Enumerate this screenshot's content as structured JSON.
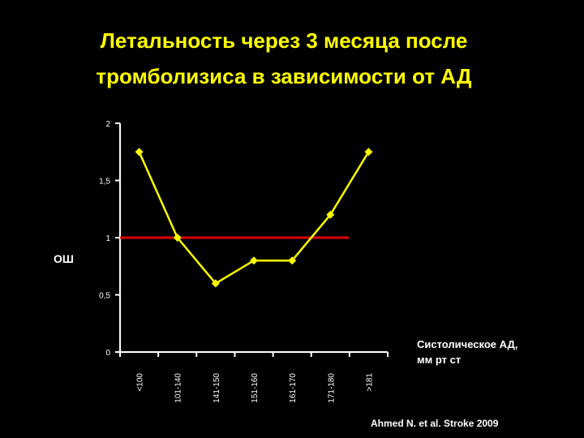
{
  "slide": {
    "title_line1": "Летальность через 3 месяца после",
    "title_line2": "тромболизиса в зависимости от АД",
    "source": "Ahmed N. et al. Stroke 2009"
  },
  "chart_data": {
    "type": "line",
    "title": "Летальность через 3 месяца после тромболизиса в зависимости от АД",
    "xlabel_line1": "Систолическое АД,",
    "xlabel_line2": "мм рт ст",
    "ylabel": "ОШ",
    "categories": [
      "<100",
      "101-140",
      "141-150",
      "151-160",
      "161-170",
      "171-180",
      ">181"
    ],
    "series": [
      {
        "values": [
          1.75,
          1.0,
          0.6,
          0.8,
          0.8,
          1.2,
          1.75
        ],
        "color": "#ffff00",
        "marker": "diamond"
      }
    ],
    "reference_line": {
      "y": 1,
      "color": "#dd0000"
    },
    "ylim": [
      0,
      2
    ],
    "yticks": [
      0,
      0.5,
      1,
      1.5,
      2
    ],
    "ytick_labels": [
      "0",
      "0,5",
      "1",
      "1,5",
      "2"
    ],
    "grid": false,
    "legend": "none",
    "colors": {
      "background": "#000000",
      "title": "#ffff00",
      "axis": "#ffffff",
      "text": "#ffffff"
    }
  }
}
